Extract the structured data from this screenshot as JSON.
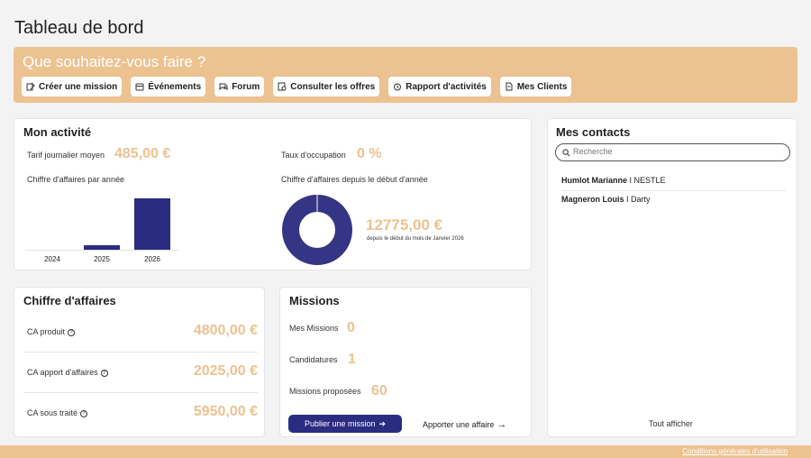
{
  "page_title": "Tableau de bord",
  "banner": {
    "title": "Que souhaitez-vous faire ?",
    "actions": [
      {
        "label": "Créer une mission",
        "icon": "mission-icon"
      },
      {
        "label": "Événements",
        "icon": "calendar-icon"
      },
      {
        "label": "Forum",
        "icon": "chat-icon"
      },
      {
        "label": "Consulter les offres",
        "icon": "offers-icon"
      },
      {
        "label": "Rapport d'activités",
        "icon": "alarm-clock-icon"
      },
      {
        "label": "Mes Clients",
        "icon": "document-icon"
      }
    ]
  },
  "activity": {
    "title": "Mon activité",
    "tjm_label": "Tarif journalier moyen",
    "tjm_value": "485,00 €",
    "occupation_label": "Taux d'occupation",
    "occupation_value": "0 %",
    "ca_year_label": "Chiffre d'affaires par année",
    "ca_ytd_label": "Chiffre d'affaires depuis le début d'année",
    "ca_ytd_value": "12775,00 €",
    "ca_ytd_sub": "depuis le début du mois de Janvier 2026"
  },
  "chart_data": [
    {
      "type": "bar",
      "categories": [
        "2024",
        "2025",
        "2026"
      ],
      "values": [
        0,
        1200,
        12775
      ],
      "ylim": [
        0,
        13000
      ],
      "colors": [
        "#2a2c82"
      ]
    },
    {
      "type": "pie",
      "values": [
        12775
      ],
      "colors": [
        "#353585"
      ]
    }
  ],
  "ca": {
    "title": "Chiffre d'affaires",
    "rows": [
      {
        "label": "CA produit",
        "value": "4800,00 €"
      },
      {
        "label": "CA apport d'affaires",
        "value": "2025,00 €"
      },
      {
        "label": "CA sous traité",
        "value": "5950,00 €"
      }
    ]
  },
  "missions": {
    "title": "Missions",
    "rows": [
      {
        "label": "Mes Missions",
        "value": "0"
      },
      {
        "label": "Candidatures",
        "value": "1"
      },
      {
        "label": "Missions proposées",
        "value": "60"
      }
    ],
    "publish_label": "Publier une mission",
    "bring_label": "Apporter une affaire"
  },
  "contacts": {
    "title": "Mes contacts",
    "search_placeholder": "Recherche",
    "items": [
      {
        "name": "Humlot Marianne",
        "company": "NESTLE"
      },
      {
        "name": "Magneron Louis",
        "company": "Darty"
      }
    ],
    "show_all": "Tout afficher"
  },
  "footer": {
    "link": "Conditions générales d'utilisation"
  },
  "colors": {
    "accent": "#ecc291",
    "primary": "#2a2c82"
  }
}
